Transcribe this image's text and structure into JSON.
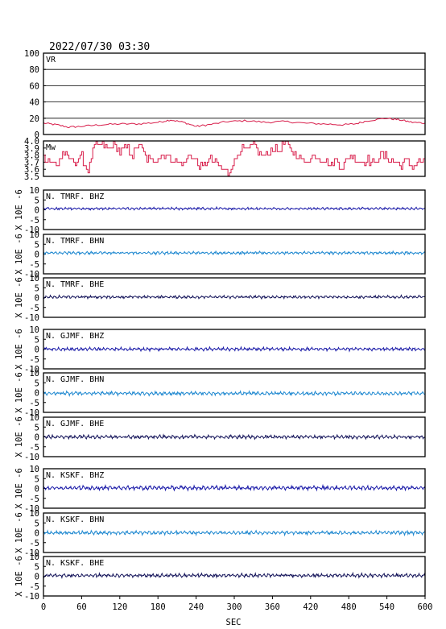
{
  "header": {
    "datetime": "2022/07/30 03:30"
  },
  "x_axis": {
    "label": "SEC",
    "ticks": [
      "0",
      "60",
      "120",
      "180",
      "240",
      "300",
      "360",
      "420",
      "480",
      "540",
      "600"
    ]
  },
  "colors": {
    "frame": "#000000",
    "vr": "#d81d4a",
    "mw": "#d81d4a",
    "bhz": "#1a1aa8",
    "bhn": "#1e88d0",
    "bhe": "#14145a"
  },
  "chart_data": [
    {
      "type": "line",
      "label": "VR",
      "xlim": [
        0,
        600
      ],
      "ylim": [
        0,
        100
      ],
      "yticks": [
        "100",
        "80",
        "60",
        "40",
        "20",
        "0"
      ],
      "grid": true,
      "color": "vr",
      "series_x": [
        0,
        20,
        40,
        60,
        90,
        120,
        150,
        180,
        200,
        220,
        240,
        260,
        290,
        320,
        350,
        380,
        410,
        440,
        470,
        490,
        510,
        540,
        560,
        580,
        600
      ],
      "series_y": [
        14,
        12,
        9,
        10,
        12,
        13,
        13,
        15,
        18,
        15,
        10,
        12,
        16,
        17,
        15,
        16,
        14,
        13,
        12,
        13,
        17,
        20,
        18,
        15,
        14
      ]
    },
    {
      "type": "line",
      "label": "Mw",
      "xlim": [
        0,
        600
      ],
      "ylim": [
        3.5,
        4.0
      ],
      "yticks": [
        "4.0",
        "3.9",
        "3.8",
        "3.7",
        "3.6",
        "3.5"
      ],
      "grid": false,
      "color": "mw",
      "series_x": [
        0,
        10,
        20,
        30,
        40,
        50,
        60,
        70,
        80,
        90,
        100,
        110,
        120,
        130,
        140,
        150,
        160,
        170,
        180,
        190,
        200,
        210,
        220,
        230,
        240,
        250,
        260,
        270,
        280,
        290,
        300,
        310,
        320,
        330,
        340,
        350,
        360,
        370,
        380,
        390,
        400,
        410,
        420,
        430,
        440,
        450,
        460,
        470,
        480,
        490,
        500,
        510,
        520,
        530,
        540,
        550,
        560,
        570,
        580,
        590,
        600
      ],
      "series_y": [
        3.78,
        3.72,
        3.65,
        3.82,
        3.75,
        3.7,
        3.78,
        3.58,
        3.92,
        3.95,
        3.88,
        3.94,
        3.85,
        3.92,
        3.8,
        3.95,
        3.78,
        3.7,
        3.76,
        3.82,
        3.74,
        3.72,
        3.66,
        3.8,
        3.7,
        3.62,
        3.75,
        3.68,
        3.6,
        3.55,
        3.72,
        3.92,
        3.85,
        3.96,
        3.82,
        3.78,
        3.9,
        3.88,
        3.98,
        3.84,
        3.8,
        3.7,
        3.76,
        3.8,
        3.73,
        3.66,
        3.72,
        3.62,
        3.8,
        3.76,
        3.7,
        3.74,
        3.68,
        3.82,
        3.76,
        3.72,
        3.66,
        3.74,
        3.62,
        3.7,
        3.72
      ]
    },
    {
      "type": "line",
      "label": "N. TMRF. BHZ",
      "ylabel": "X 10E -6",
      "xlim": [
        0,
        600
      ],
      "ylim": [
        -10,
        10
      ],
      "yticks": [
        "10",
        "5",
        "0",
        "-5",
        "-10"
      ],
      "color": "bhz",
      "amplitude": 0.6,
      "offset": 0.6
    },
    {
      "type": "line",
      "label": "N. TMRF. BHN",
      "ylabel": "X 10E -6",
      "xlim": [
        0,
        600
      ],
      "ylim": [
        -10,
        10
      ],
      "yticks": [
        "10",
        "5",
        "0",
        "-5",
        "-10"
      ],
      "color": "bhn",
      "amplitude": 0.7,
      "offset": 0.6
    },
    {
      "type": "line",
      "label": "N. TMRF. BHE",
      "ylabel": "X 10E -6",
      "xlim": [
        0,
        600
      ],
      "ylim": [
        -10,
        10
      ],
      "yticks": [
        "10",
        "5",
        "0",
        "-5",
        "-10"
      ],
      "color": "bhe",
      "amplitude": 0.7,
      "offset": 0.3
    },
    {
      "type": "line",
      "label": "N. GJMF. BHZ",
      "ylabel": "X 10E -6",
      "xlim": [
        0,
        600
      ],
      "ylim": [
        -10,
        10
      ],
      "yticks": [
        "10",
        "5",
        "0",
        "-5",
        "-10"
      ],
      "color": "bhz",
      "amplitude": 0.8,
      "offset": 0.0
    },
    {
      "type": "line",
      "label": "N. GJMF. BHN",
      "ylabel": "X 10E -6",
      "xlim": [
        0,
        600
      ],
      "ylim": [
        -10,
        10
      ],
      "yticks": [
        "10",
        "5",
        "0",
        "-5",
        "-10"
      ],
      "color": "bhn",
      "amplitude": 0.9,
      "offset": -0.4
    },
    {
      "type": "line",
      "label": "N. GJMF. BHE",
      "ylabel": "X 10E -6",
      "xlim": [
        0,
        600
      ],
      "ylim": [
        -10,
        10
      ],
      "yticks": [
        "10",
        "5",
        "0",
        "-5",
        "-10"
      ],
      "color": "bhe",
      "amplitude": 0.9,
      "offset": 0.0
    },
    {
      "type": "line",
      "label": "N. KSKF. BHZ",
      "ylabel": "X 10E -6",
      "xlim": [
        0,
        600
      ],
      "ylim": [
        -10,
        10
      ],
      "yticks": [
        "10",
        "5",
        "0",
        "-5",
        "-10"
      ],
      "color": "bhz",
      "amplitude": 1.0,
      "offset": 0.3
    },
    {
      "type": "line",
      "label": "N. KSKF. BHN",
      "ylabel": "X 10E -6",
      "xlim": [
        0,
        600
      ],
      "ylim": [
        -10,
        10
      ],
      "yticks": [
        "10",
        "5",
        "0",
        "-5",
        "-10"
      ],
      "color": "bhn",
      "amplitude": 0.9,
      "offset": 0.0
    },
    {
      "type": "line",
      "label": "N. KSKF. BHE",
      "ylabel": "X 10E -6",
      "xlim": [
        0,
        600
      ],
      "ylim": [
        -10,
        10
      ],
      "yticks": [
        "10",
        "5",
        "0",
        "-5",
        "-10"
      ],
      "color": "bhe",
      "amplitude": 0.9,
      "offset": 0.4
    }
  ]
}
